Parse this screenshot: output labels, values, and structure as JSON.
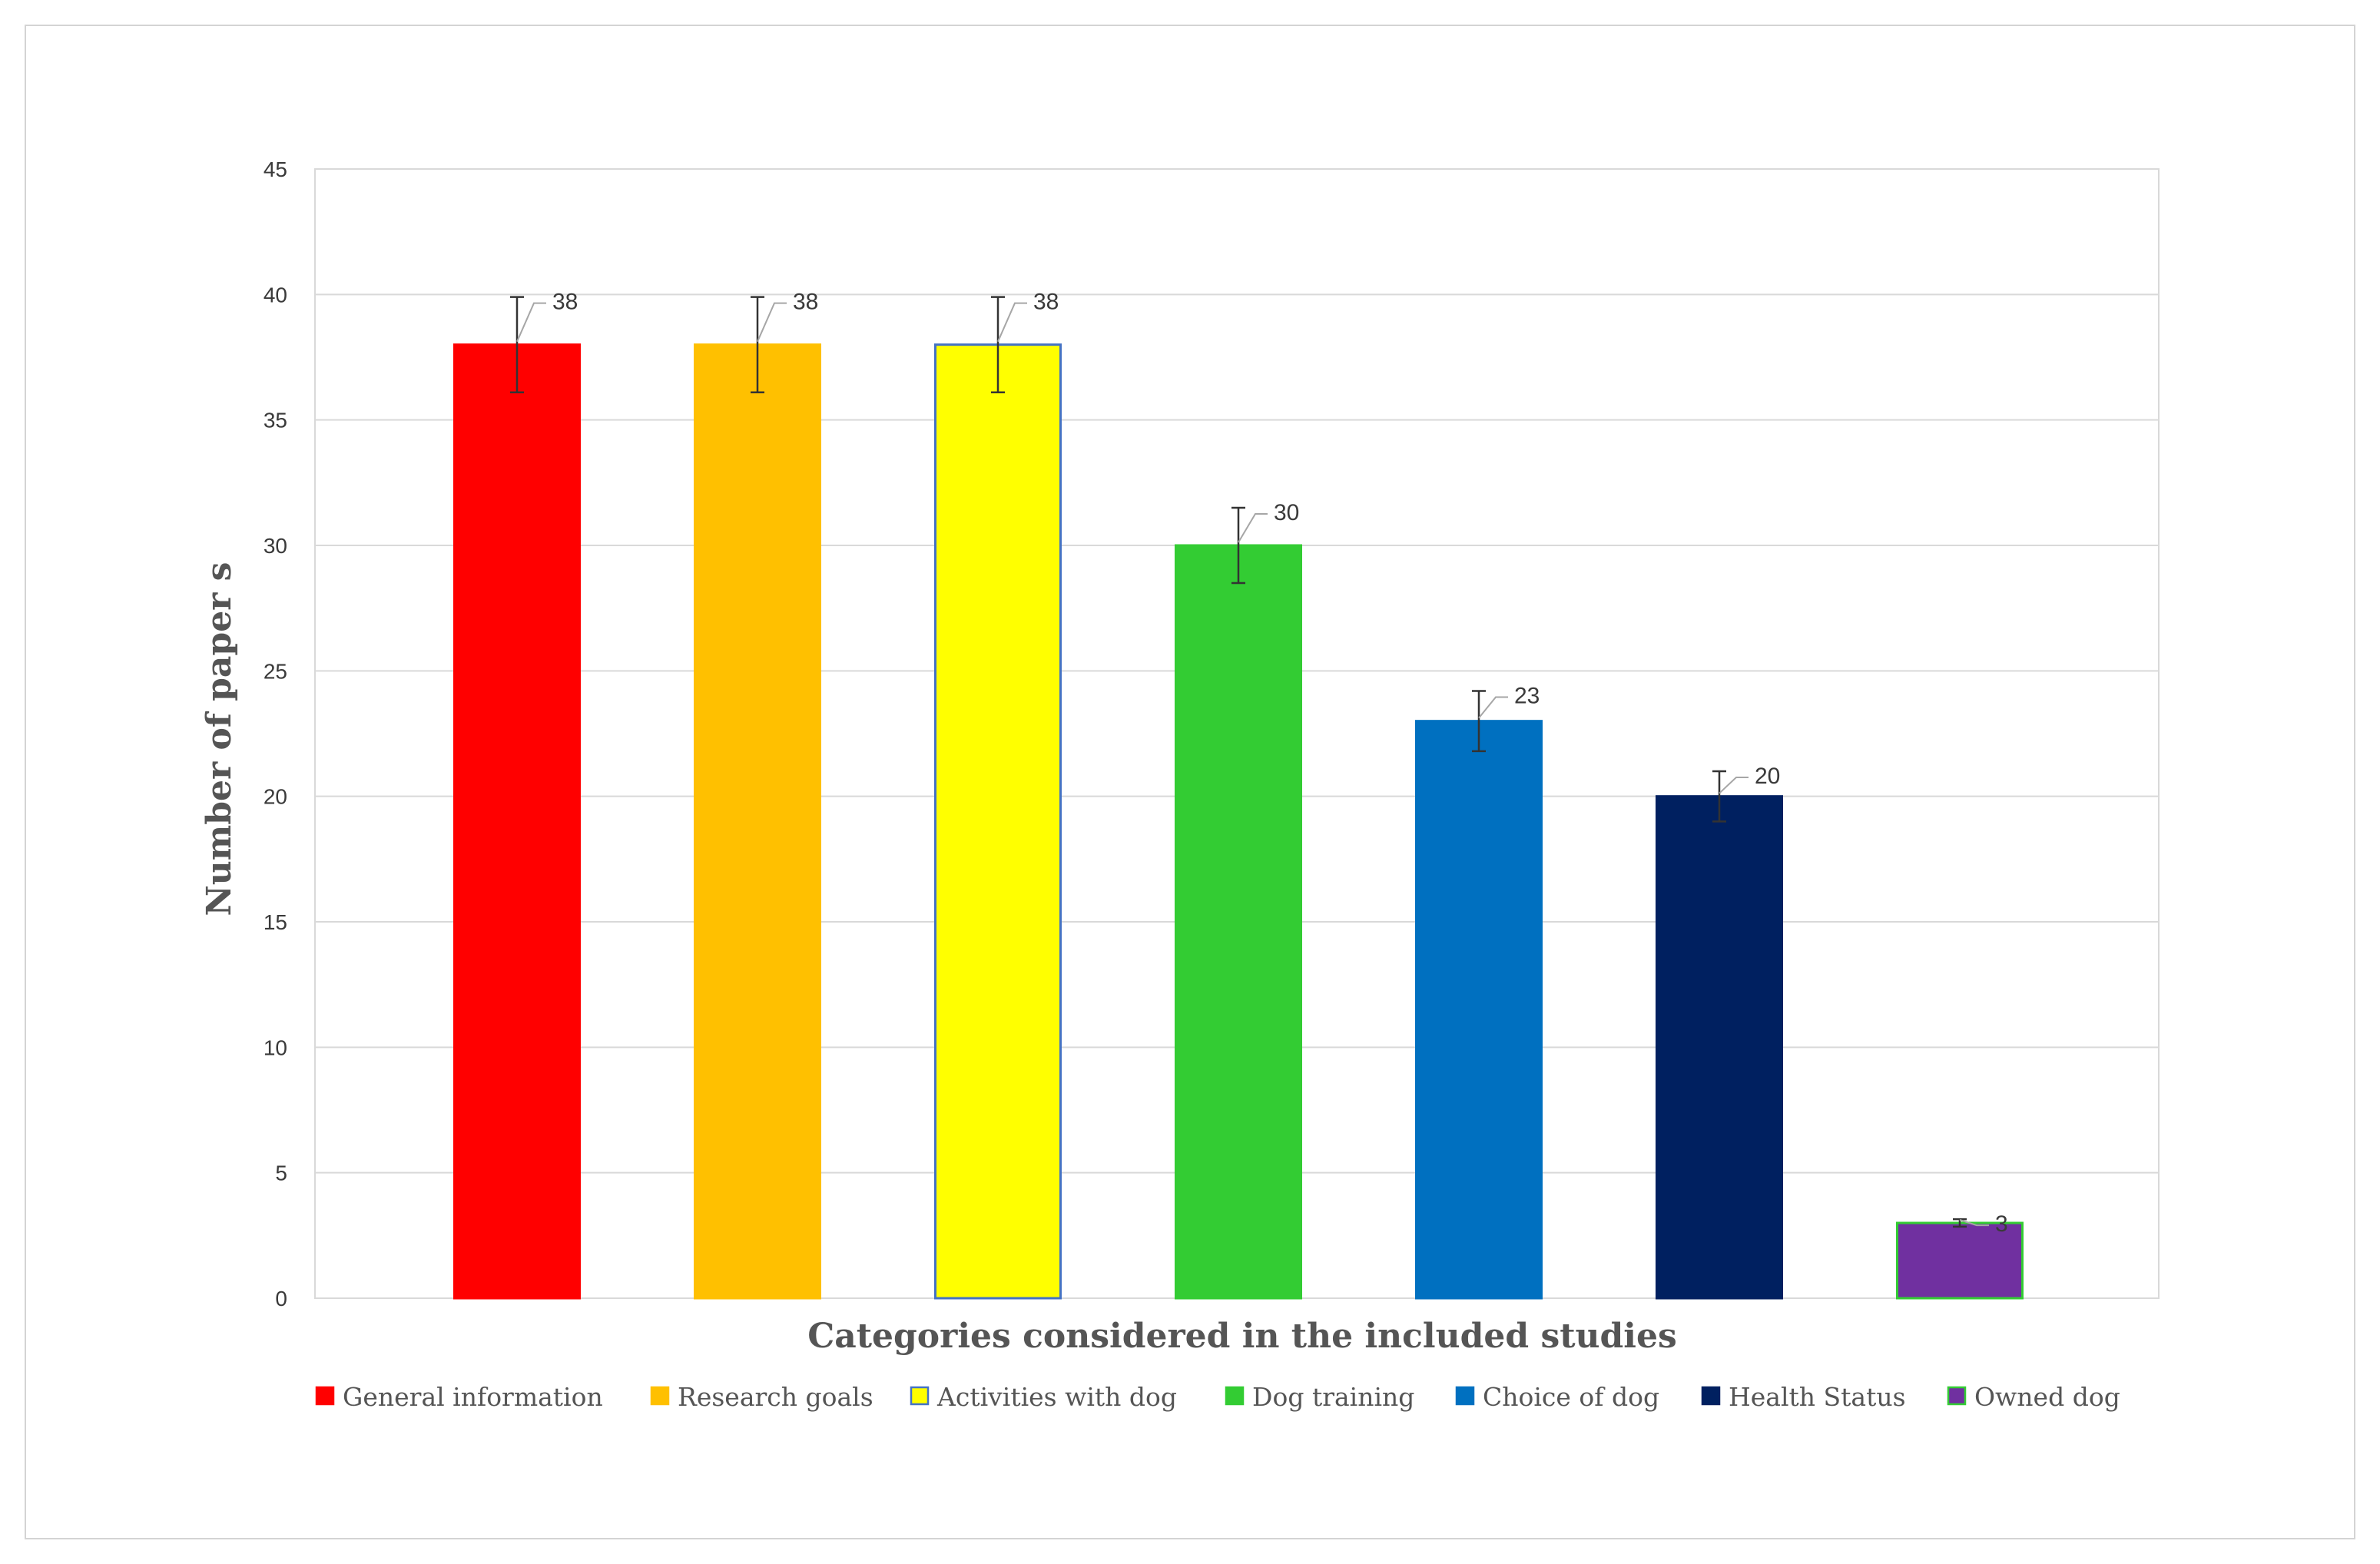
{
  "chart_data": {
    "type": "bar",
    "title": "",
    "xlabel": "Categories considered in the included studies",
    "ylabel": "Number of paper s",
    "ylim": [
      0,
      45
    ],
    "yticks": [
      0,
      5,
      10,
      15,
      20,
      25,
      30,
      35,
      40,
      45
    ],
    "grid": true,
    "legend_position": "bottom",
    "categories": [
      "General information",
      "Research goals",
      "Activities with dog",
      "Dog training",
      "Choice of dog",
      "Health Status",
      "Owned dog"
    ],
    "values": [
      38,
      38,
      38,
      30,
      23,
      20,
      3
    ],
    "error_bars": [
      {
        "low": 36.1,
        "high": 39.9
      },
      {
        "low": 36.1,
        "high": 39.9
      },
      {
        "low": 36.1,
        "high": 39.9
      },
      {
        "low": 28.5,
        "high": 31.5
      },
      {
        "low": 21.8,
        "high": 24.2
      },
      {
        "low": 19.0,
        "high": 21.0
      },
      {
        "low": 2.85,
        "high": 3.15
      }
    ],
    "data_labels": [
      "38",
      "38",
      "38",
      "30",
      "23",
      "20",
      "3"
    ],
    "colors": [
      "#ff0000",
      "#ffc000",
      "#ffff00",
      "#33cc33",
      "#0070c0",
      "#002060",
      "#7030a0"
    ],
    "border_colors": [
      "#ff0000",
      "#ffc000",
      "#4472c4",
      "#33cc33",
      "#0070c0",
      "#002060",
      "#33cc33"
    ]
  }
}
